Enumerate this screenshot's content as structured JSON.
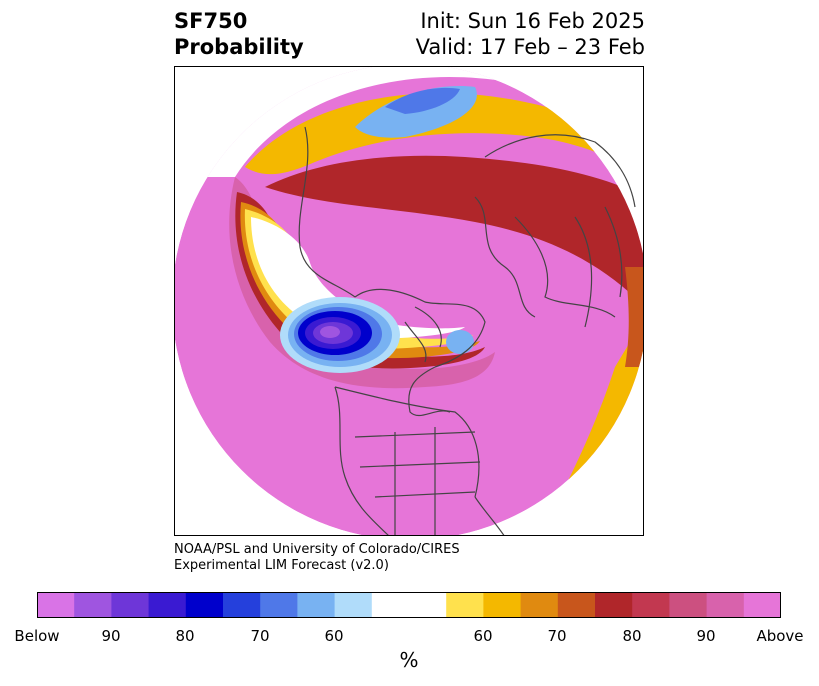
{
  "title": {
    "line1": "SF750",
    "line2": "Probability"
  },
  "info": {
    "init": "Init: Sun 16 Feb 2025",
    "valid": "Valid: 17 Feb – 23 Feb"
  },
  "credit": {
    "line1": "NOAA/PSL and University of Colorado/CIRES",
    "line2": "Experimental LIM Forecast (v2.0)"
  },
  "colorbar": {
    "label": "%",
    "colors": [
      "#d973e6",
      "#9f55e0",
      "#6e36d8",
      "#3a1ad2",
      "#0000cc",
      "#2540dc",
      "#4f78e8",
      "#78b2f2",
      "#b0dcfa",
      "#ffffff",
      "#ffe14d",
      "#f4b800",
      "#e08a10",
      "#c8561c",
      "#b0262a",
      "#c23850",
      "#cc5080",
      "#d862ac",
      "#e675d8"
    ],
    "ticks": [
      "Below",
      "90",
      "80",
      "70",
      "60",
      "60",
      "70",
      "80",
      "90",
      "Above"
    ]
  },
  "legend": {
    "below_color": "#6e36d8",
    "above_color": "#b0262a",
    "neutral_color": "#ffffff"
  }
}
